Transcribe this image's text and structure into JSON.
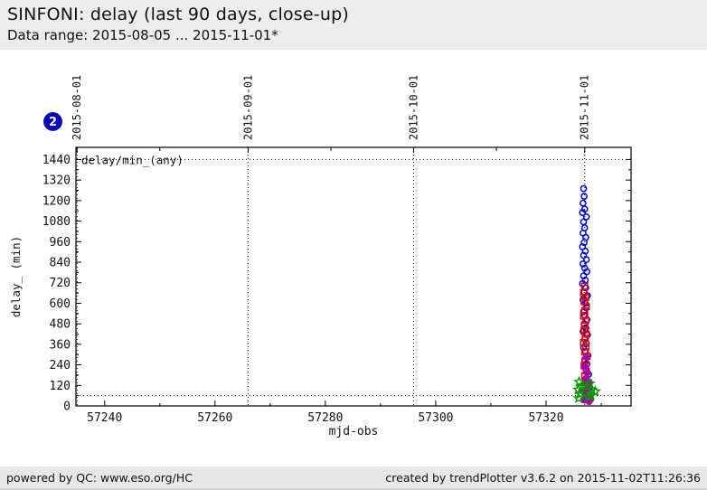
{
  "header": {
    "title": "SINFONI: delay (last 90 days, close-up)",
    "subtitle": "Data range: 2015-08-05 ... 2015-11-01*"
  },
  "badge": {
    "label": "2",
    "color": "#0000cc"
  },
  "footer": {
    "left": "powered by QC: www.eso.org/HC",
    "right": "created by trendPlotter v3.6.2 on 2015-11-02T11:26:36"
  },
  "chart_data": {
    "type": "scatter",
    "xlabel": "mjd-obs",
    "ylabel": "delay_ (min)",
    "legend_label": "delay/min_(any)",
    "legend_position": "top-left-inside",
    "grid": "dotted vertical lines at month starts",
    "xlim": [
      57234.8,
      57335.4
    ],
    "ylim": [
      0,
      1511
    ],
    "x_ticks_major": [
      57240,
      57260,
      57280,
      57300,
      57320
    ],
    "x_ticks_minor": [
      57250,
      57270,
      57290,
      57310,
      57330
    ],
    "y_ticks_major": [
      0,
      120,
      240,
      360,
      480,
      600,
      720,
      840,
      960,
      1080,
      1200,
      1320,
      1440
    ],
    "y_ticks_minor": [
      60,
      180,
      300,
      420,
      540,
      660,
      780,
      900,
      1020,
      1140,
      1260,
      1380
    ],
    "top_axis_months": [
      {
        "label": "2015-08-01",
        "mjd": 57235
      },
      {
        "label": "2015-09-01",
        "mjd": 57266
      },
      {
        "label": "2015-10-01",
        "mjd": 57296
      },
      {
        "label": "2015-11-01",
        "mjd": 57327
      }
    ],
    "top_axis_minor_ticks": [
      57250,
      57281,
      57311
    ],
    "hlines_dotted": [
      1440,
      60
    ],
    "colors": {
      "frame": "#000000",
      "dotted": "#222222"
    },
    "series": [
      {
        "name": "delay-any-blue",
        "marker": "circle-open",
        "color": "#0000e0",
        "points": [
          [
            57326.8,
            1270
          ],
          [
            57326.9,
            1225
          ],
          [
            57326.7,
            1185
          ],
          [
            57327.0,
            1150
          ],
          [
            57326.6,
            1130
          ],
          [
            57327.3,
            1105
          ],
          [
            57326.8,
            1075
          ],
          [
            57327.0,
            1040
          ],
          [
            57326.7,
            1010
          ],
          [
            57327.2,
            985
          ],
          [
            57326.9,
            955
          ],
          [
            57326.6,
            930
          ],
          [
            57327.1,
            905
          ],
          [
            57326.8,
            880
          ],
          [
            57327.3,
            855
          ],
          [
            57326.7,
            830
          ],
          [
            57327.0,
            805
          ],
          [
            57327.4,
            785
          ],
          [
            57326.8,
            760
          ],
          [
            57327.1,
            735
          ],
          [
            57326.6,
            715
          ],
          [
            57327.2,
            690
          ],
          [
            57326.9,
            665
          ],
          [
            57327.5,
            645
          ],
          [
            57326.7,
            620
          ],
          [
            57327.1,
            600
          ],
          [
            57327.3,
            575
          ],
          [
            57326.8,
            550
          ],
          [
            57327.0,
            530
          ],
          [
            57327.4,
            505
          ],
          [
            57326.9,
            480
          ],
          [
            57327.2,
            455
          ],
          [
            57326.7,
            435
          ],
          [
            57327.5,
            415
          ],
          [
            57327.0,
            390
          ],
          [
            57327.3,
            365
          ],
          [
            57326.8,
            340
          ],
          [
            57327.1,
            320
          ],
          [
            57327.6,
            295
          ],
          [
            57327.0,
            270
          ],
          [
            57327.4,
            245
          ],
          [
            57327.2,
            215
          ],
          [
            57327.7,
            185
          ],
          [
            57327.1,
            155
          ],
          [
            57327.5,
            130
          ],
          [
            57327.9,
            110
          ],
          [
            57327.3,
            75
          ]
        ]
      },
      {
        "name": "delay-red",
        "marker": "square-open",
        "color": "#e80000",
        "points": [
          [
            57327.0,
            700
          ],
          [
            57326.8,
            660
          ],
          [
            57327.2,
            635
          ],
          [
            57326.9,
            610
          ],
          [
            57327.3,
            580
          ],
          [
            57327.0,
            555
          ],
          [
            57326.8,
            525
          ],
          [
            57327.2,
            500
          ],
          [
            57327.0,
            470
          ],
          [
            57326.9,
            445
          ],
          [
            57327.3,
            420
          ],
          [
            57327.1,
            395
          ],
          [
            57326.8,
            370
          ],
          [
            57327.2,
            345
          ],
          [
            57327.0,
            315
          ],
          [
            57327.4,
            290
          ],
          [
            57327.1,
            265
          ],
          [
            57326.9,
            235
          ],
          [
            57327.3,
            205
          ],
          [
            57327.0,
            175
          ],
          [
            57327.2,
            145
          ],
          [
            57327.5,
            115
          ],
          [
            57327.1,
            85
          ],
          [
            57327.8,
            60
          ]
        ]
      },
      {
        "name": "delay-magenta",
        "marker": "circle-filled",
        "color": "#aa00aa",
        "points": [
          [
            57327.3,
            285
          ],
          [
            57327.0,
            230
          ],
          [
            57327.5,
            195
          ],
          [
            57327.2,
            160
          ],
          [
            57327.8,
            140
          ],
          [
            57327.4,
            120
          ],
          [
            57327.0,
            95
          ],
          [
            57327.6,
            75
          ],
          [
            57327.3,
            55
          ],
          [
            57328.1,
            40
          ],
          [
            57327.8,
            25
          ],
          [
            57326.9,
            35
          ]
        ]
      },
      {
        "name": "delay-green",
        "marker": "star",
        "color": "#009900",
        "points": [
          [
            57326.0,
            140
          ],
          [
            57326.4,
            110
          ],
          [
            57325.8,
            95
          ],
          [
            57326.7,
            120
          ],
          [
            57327.9,
            130
          ],
          [
            57328.3,
            95
          ],
          [
            57326.2,
            70
          ],
          [
            57327.6,
            55
          ],
          [
            57325.9,
            45
          ],
          [
            57328.9,
            85
          ],
          [
            57328.1,
            60
          ]
        ]
      }
    ]
  }
}
